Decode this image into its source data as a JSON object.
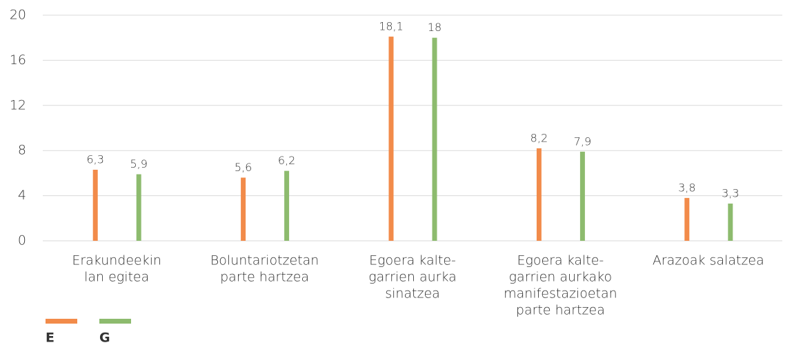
{
  "chart_data": {
    "type": "bar",
    "categories": [
      [
        "Erakundeekin",
        "lan egitea"
      ],
      [
        "Boluntariotzetan",
        "parte hartzea"
      ],
      [
        "Egoera kalte-",
        "garrien aurka",
        "sinatzea"
      ],
      [
        "Egoera kalte-",
        "garrien aurkako",
        "manifestazioetan",
        "parte hartzea"
      ],
      [
        "Arazoak salatzea"
      ]
    ],
    "series": [
      {
        "name": "E",
        "color": "#f28b4a",
        "values": [
          6.3,
          5.6,
          18.1,
          8.2,
          3.8
        ],
        "value_labels": [
          "6,3",
          "5,6",
          "18,1",
          "8,2",
          "3,8"
        ]
      },
      {
        "name": "G",
        "color": "#8dbb6e",
        "values": [
          5.9,
          6.2,
          18,
          7.9,
          3.3
        ],
        "value_labels": [
          "5,9",
          "6,2",
          "18",
          "7,9",
          "3,3"
        ]
      }
    ],
    "ylim": [
      0,
      20
    ],
    "yticks": [
      0,
      4,
      8,
      12,
      16,
      20
    ],
    "grid": true,
    "legend": "bottom-left"
  }
}
